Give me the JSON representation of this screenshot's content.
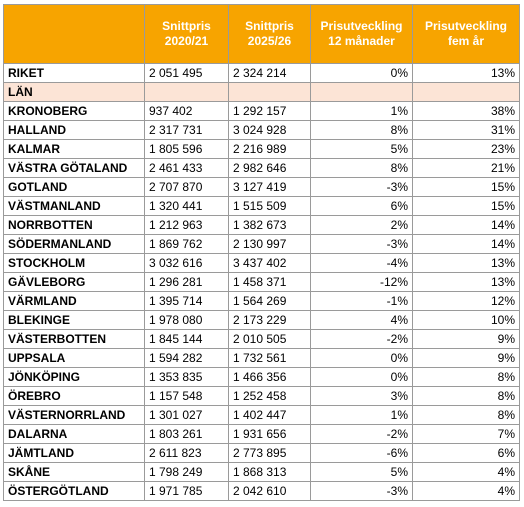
{
  "table": {
    "headers": [
      [],
      [
        "Snittpris",
        "2020/21"
      ],
      [
        "Snittpris",
        "2025/26"
      ],
      [
        "Prisutveckling",
        "12 månader"
      ],
      [
        "Prisutveckling",
        "fem år"
      ]
    ],
    "total": [
      "RIKET",
      "2 051 495",
      "2 324 214",
      "0%",
      "13%"
    ],
    "section": "LÄN",
    "rows": [
      [
        "KRONOBERG",
        "937 402",
        "1 292 157",
        "1%",
        "38%"
      ],
      [
        "HALLAND",
        "2 317 731",
        "3 024 928",
        "8%",
        "31%"
      ],
      [
        "KALMAR",
        "1 805 596",
        "2 216 989",
        "5%",
        "23%"
      ],
      [
        "VÄSTRA GÖTALAND",
        "2 461 433",
        "2 982 646",
        "8%",
        "21%"
      ],
      [
        "GOTLAND",
        "2 707 870",
        "3 127 419",
        "-3%",
        "15%"
      ],
      [
        "VÄSTMANLAND",
        "1 320 441",
        "1 515 509",
        "6%",
        "15%"
      ],
      [
        "NORRBOTTEN",
        "1 212 963",
        "1 382 673",
        "2%",
        "14%"
      ],
      [
        "SÖDERMANLAND",
        "1 869 762",
        "2 130 997",
        "-3%",
        "14%"
      ],
      [
        "STOCKHOLM",
        "3 032 616",
        "3 437 402",
        "-4%",
        "13%"
      ],
      [
        "GÄVLEBORG",
        "1 296 281",
        "1 458 371",
        "-12%",
        "13%"
      ],
      [
        "VÄRMLAND",
        "1 395 714",
        "1 564 269",
        "-1%",
        "12%"
      ],
      [
        "BLEKINGE",
        "1 978 080",
        "2 173 229",
        "4%",
        "10%"
      ],
      [
        "VÄSTERBOTTEN",
        "1 845 144",
        "2 010 505",
        "-2%",
        "9%"
      ],
      [
        "UPPSALA",
        "1 594 282",
        "1 732 561",
        "0%",
        "9%"
      ],
      [
        "JÖNKÖPING",
        "1 353 835",
        "1 466 356",
        "0%",
        "8%"
      ],
      [
        "ÖREBRO",
        "1 157 548",
        "1 252 458",
        "3%",
        "8%"
      ],
      [
        "VÄSTERNORRLAND",
        "1 301 027",
        "1 402 447",
        "1%",
        "8%"
      ],
      [
        "DALARNA",
        "1 803 261",
        "1 931 656",
        "-2%",
        "7%"
      ],
      [
        "JÄMTLAND",
        "2 611 823",
        "2 773 895",
        "-6%",
        "6%"
      ],
      [
        "SKÅNE",
        "1 798 249",
        "1 868 313",
        "5%",
        "4%"
      ],
      [
        "ÖSTERGÖTLAND",
        "1 971 785",
        "2 042 610",
        "-3%",
        "4%"
      ]
    ]
  }
}
